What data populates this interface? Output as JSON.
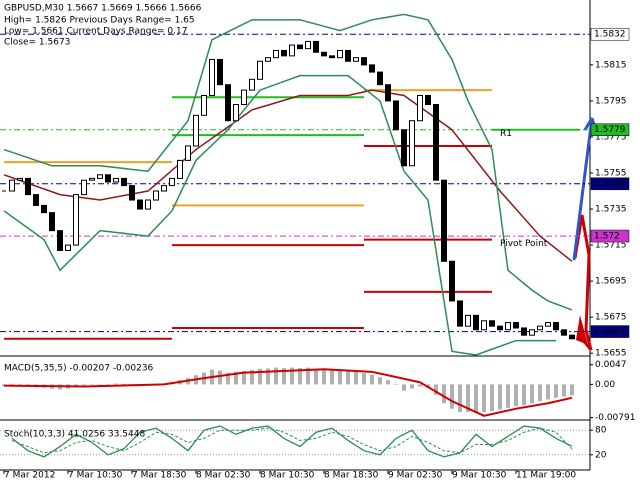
{
  "chart_data": [
    {
      "type": "candlestick",
      "title": "GBPUSD,M30  1.5667 1.5669 1.5666 1.5666",
      "info": [
        "High= 1.5826    Previous Days Range= 1.65",
        "Low= 1.5661    Current Days Range= 0.17",
        "Close= 1.5673"
      ],
      "close": [
        1.5745,
        1.5751,
        1.5752,
        1.5743,
        1.5737,
        1.5733,
        1.5723,
        1.5712,
        1.5715,
        1.5743,
        1.5751,
        1.5752,
        1.5754,
        1.575,
        1.5752,
        1.5748,
        1.574,
        1.5735,
        1.574,
        1.5745,
        1.5748,
        1.5752,
        1.5762,
        1.577,
        1.5787,
        1.5798,
        1.5818,
        1.5804,
        1.5784,
        1.5793,
        1.5801,
        1.5807,
        1.5817,
        1.5819,
        1.5823,
        1.582,
        1.5826,
        1.5824,
        1.5828,
        1.5822,
        1.582,
        1.5819,
        1.5823,
        1.5817,
        1.5819,
        1.5815,
        1.5811,
        1.5804,
        1.5795,
        1.5779,
        1.5759,
        1.5784,
        1.5798,
        1.5793,
        1.5751,
        1.5706,
        1.5684,
        1.567,
        1.5676,
        1.5668,
        1.5673,
        1.567,
        1.5668,
        1.5672,
        1.5669,
        1.5665,
        1.5668,
        1.567,
        1.5672,
        1.5668,
        1.5665,
        1.5663
      ],
      "overlays": [
        {
          "color": "#8b1a1a",
          "index": [
            0,
            7,
            12,
            18,
            24,
            31,
            37,
            43,
            46,
            50,
            56,
            62,
            67,
            71
          ],
          "values": [
            1.5754,
            1.5743,
            1.574,
            1.5745,
            1.5768,
            1.579,
            1.5798,
            1.5798,
            1.5801,
            1.5798,
            1.5779,
            1.5745,
            1.572,
            1.5706
          ]
        },
        {
          "color": "#2e8b57",
          "index": [
            0,
            6,
            12,
            18,
            23,
            26,
            31,
            37,
            42,
            46,
            50,
            53,
            56,
            58,
            61,
            63,
            66,
            68,
            71
          ],
          "values": [
            1.5768,
            1.5759,
            1.5759,
            1.5756,
            1.5784,
            1.5829,
            1.584,
            1.584,
            1.5834,
            1.584,
            1.5843,
            1.584,
            1.5818,
            1.5795,
            1.5768,
            1.5701,
            1.569,
            1.5684,
            1.5679
          ]
        },
        {
          "color": "#2e8b57",
          "index": [
            0,
            5,
            7,
            12,
            18,
            21,
            24,
            28,
            32,
            37,
            43,
            47,
            50,
            53,
            56,
            59,
            64,
            69
          ],
          "values": [
            1.5734,
            1.5718,
            1.5701,
            1.5723,
            1.572,
            1.5734,
            1.5762,
            1.5779,
            1.5801,
            1.5809,
            1.5809,
            1.5795,
            1.5756,
            1.574,
            1.5656,
            1.5654,
            1.5662,
            1.5662
          ]
        }
      ],
      "levels": [
        {
          "from": 0,
          "to": 21,
          "value": 1.5761,
          "color": "#f0a020"
        },
        {
          "from": 21,
          "to": 45,
          "value": 1.5737,
          "color": "#f0a020"
        },
        {
          "from": 45,
          "to": 61,
          "value": 1.5801,
          "color": "#f0a020"
        },
        {
          "from": 21,
          "to": 45,
          "value": 1.5797,
          "color": "#22bb22"
        },
        {
          "from": 21,
          "to": 45,
          "value": 1.5776,
          "color": "#22bb22"
        },
        {
          "from": 61,
          "to": 72,
          "value": 1.5779,
          "color": "#22bb22"
        },
        {
          "from": 21,
          "to": 45,
          "value": 1.5715,
          "color": "#cc0000"
        },
        {
          "from": 21,
          "to": 45,
          "value": 1.5669,
          "color": "#cc0000"
        },
        {
          "from": 0,
          "to": 21,
          "value": 1.5663,
          "color": "#cc0000"
        },
        {
          "from": 45,
          "to": 61,
          "value": 1.577,
          "color": "#cc0000"
        },
        {
          "from": 45,
          "to": 61,
          "value": 1.5718,
          "color": "#cc0000"
        },
        {
          "from": 45,
          "to": 61,
          "value": 1.5689,
          "color": "#cc0000"
        }
      ],
      "price_lines": [
        {
          "value": 1.5832,
          "color": "#000080",
          "bg": "#ffffff",
          "fg": "#000000"
        },
        {
          "value": 1.5779,
          "color": "#22bb22",
          "bg": "#22bb22",
          "fg": "#ffffff"
        },
        {
          "value": 1.5749,
          "color": "#000080",
          "bg": "#000080",
          "fg": "#ffffff"
        },
        {
          "value": 1.572,
          "color": "#cc33cc",
          "bg": "#cc33cc",
          "fg": "#ffffff"
        },
        {
          "value": 1.5667,
          "color": "#000080",
          "bg": "#000080",
          "fg": "#ffffff"
        }
      ],
      "annotations": [
        {
          "text": "R1",
          "index": 62,
          "value": 1.5777,
          "color": "#f0a020"
        },
        {
          "text": "Pivot Point",
          "index": 62,
          "value": 1.5716,
          "color": "#f0a020"
        }
      ],
      "ylim": [
        1.5654,
        1.5851
      ],
      "yticks": [
        1.5815,
        1.5795,
        1.5775,
        1.5755,
        1.5735,
        1.5715,
        1.5695,
        1.5675,
        1.5655
      ]
    },
    {
      "type": "macd",
      "title": "MACD(5,35,5) -0.00207 -0.00236",
      "values": [
        -0.0004,
        -0.0003,
        -0.0002,
        -0.0005,
        -0.0007,
        -0.0008,
        -0.001,
        -0.0012,
        -0.001,
        -0.0005,
        -0.0002,
        0.0,
        0.0001,
        0.0001,
        0.0002,
        0.0001,
        -0.0002,
        -0.0003,
        -0.0002,
        0.0,
        0.0002,
        0.0005,
        0.001,
        0.0015,
        0.0022,
        0.0028,
        0.0035,
        0.0033,
        0.0028,
        0.003,
        0.0032,
        0.0034,
        0.0037,
        0.0038,
        0.004,
        0.0039,
        0.004,
        0.0039,
        0.004,
        0.0037,
        0.0035,
        0.0034,
        0.0034,
        0.0031,
        0.003,
        0.0027,
        0.0023,
        0.0017,
        0.001,
        0.0,
        -0.0015,
        -0.001,
        -0.0005,
        -0.0008,
        -0.0025,
        -0.0045,
        -0.0058,
        -0.0066,
        -0.0066,
        -0.0068,
        -0.0066,
        -0.0064,
        -0.006,
        -0.0056,
        -0.0052,
        -0.005,
        -0.0045,
        -0.004,
        -0.0036,
        -0.0032,
        -0.0029,
        -0.0026
      ],
      "color": "#b0b0b0",
      "signal": {
        "color": "#cc0000",
        "index": [
          0,
          10,
          20,
          25,
          30,
          40,
          46,
          52,
          56,
          60,
          64,
          68,
          71
        ],
        "values": [
          -0.0003,
          -0.0005,
          0.0,
          0.0015,
          0.0028,
          0.0036,
          0.003,
          0.0005,
          -0.004,
          -0.0075,
          -0.0058,
          -0.0045,
          -0.0032
        ]
      },
      "ylim": [
        -0.0085,
        0.0063
      ],
      "yticks": [
        0.0047,
        {
          "value": 0,
          "label": "0.00"
        },
        -0.00791
      ]
    },
    {
      "type": "stochastic",
      "title": "Stoch(10,3,3) 41.0256 33.5448",
      "index": [
        1,
        3,
        5,
        7,
        9,
        11,
        13,
        15,
        17,
        19,
        21,
        23,
        25,
        27,
        29,
        31,
        33,
        35,
        37,
        39,
        41,
        43,
        45,
        47,
        49,
        51,
        53,
        55,
        57,
        59,
        61,
        63,
        65,
        67,
        69,
        71
      ],
      "main": [
        60,
        30,
        15,
        40,
        70,
        50,
        20,
        35,
        75,
        85,
        60,
        30,
        80,
        90,
        70,
        85,
        90,
        60,
        40,
        75,
        85,
        55,
        30,
        20,
        60,
        80,
        30,
        15,
        25,
        70,
        40,
        65,
        90,
        85,
        60,
        41
      ],
      "signal": [
        55,
        40,
        25,
        30,
        50,
        55,
        40,
        30,
        50,
        75,
        70,
        50,
        60,
        80,
        80,
        80,
        85,
        75,
        55,
        60,
        75,
        65,
        45,
        30,
        40,
        65,
        50,
        30,
        25,
        45,
        45,
        55,
        75,
        85,
        75,
        34
      ],
      "color": "#2e8b57",
      "ylim": [
        0,
        100
      ],
      "yticks": [
        80,
        20
      ],
      "xticks": [
        {
          "value": 0,
          "label": "7 Mar 2012"
        },
        {
          "value": 8,
          "label": "7 Mar 10:30"
        },
        {
          "value": 16,
          "label": "7 Mar 18:30"
        },
        {
          "value": 24,
          "label": "8 Mar 02:30"
        },
        {
          "value": 32,
          "label": "8 Mar 10:30"
        },
        {
          "value": 40,
          "label": "8 Mar 18:30"
        },
        {
          "value": 48,
          "label": "9 Mar 02:30"
        },
        {
          "value": 56,
          "label": "9 Mar 10:30"
        },
        {
          "value": 64,
          "label": "11 Mar 19:00"
        }
      ]
    }
  ]
}
